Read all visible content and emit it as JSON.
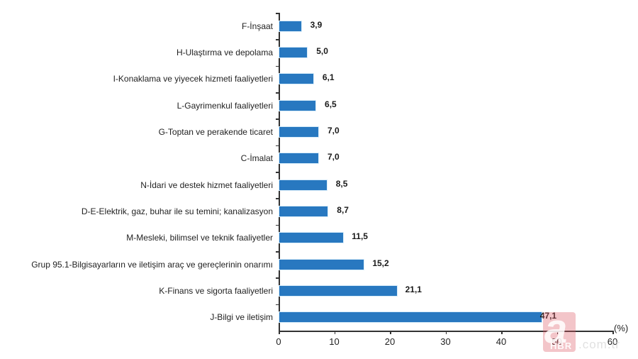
{
  "chart_data": {
    "type": "bar",
    "orientation": "horizontal",
    "title": "",
    "xlabel": "(%)",
    "ylabel": "",
    "xlim": [
      0,
      60
    ],
    "xticks": [
      0,
      10,
      20,
      30,
      40,
      50,
      60
    ],
    "grid": false,
    "legend": null,
    "bar_color": "#2878c0",
    "categories": [
      "F-İnşaat",
      "H-Ulaştırma ve depolama",
      "I-Konaklama ve yiyecek hizmeti faaliyetleri",
      "L-Gayrimenkul faaliyetleri",
      "G-Toptan ve perakende ticaret",
      "C-İmalat",
      "N-İdari ve destek hizmet faaliyetleri",
      "D-E-Elektrik, gaz, buhar ile su temini; kanalizasyon",
      "M-Mesleki, bilimsel ve teknik faaliyetler",
      "Grup 95.1-Bilgisayarların ve iletişim araç ve gereçlerinin onarımı",
      "K-Finans ve sigorta faaliyetleri",
      "J-Bilgi ve iletişim"
    ],
    "values": [
      3.9,
      5.0,
      6.1,
      6.5,
      7.0,
      7.0,
      8.5,
      8.7,
      11.5,
      15.2,
      21.1,
      47.1
    ],
    "value_labels": [
      "3,9",
      "5,0",
      "6,1",
      "6,5",
      "7,0",
      "7,0",
      "8,5",
      "8,7",
      "11,5",
      "15,2",
      "21,1",
      "47,1"
    ]
  },
  "axis": {
    "unit_label": "(%)",
    "tick_labels": [
      "0",
      "10",
      "20",
      "30",
      "40",
      "50",
      "60"
    ]
  },
  "watermark": {
    "logo_letter": "a",
    "brand": "HBR",
    "domain": ".com.tr"
  }
}
